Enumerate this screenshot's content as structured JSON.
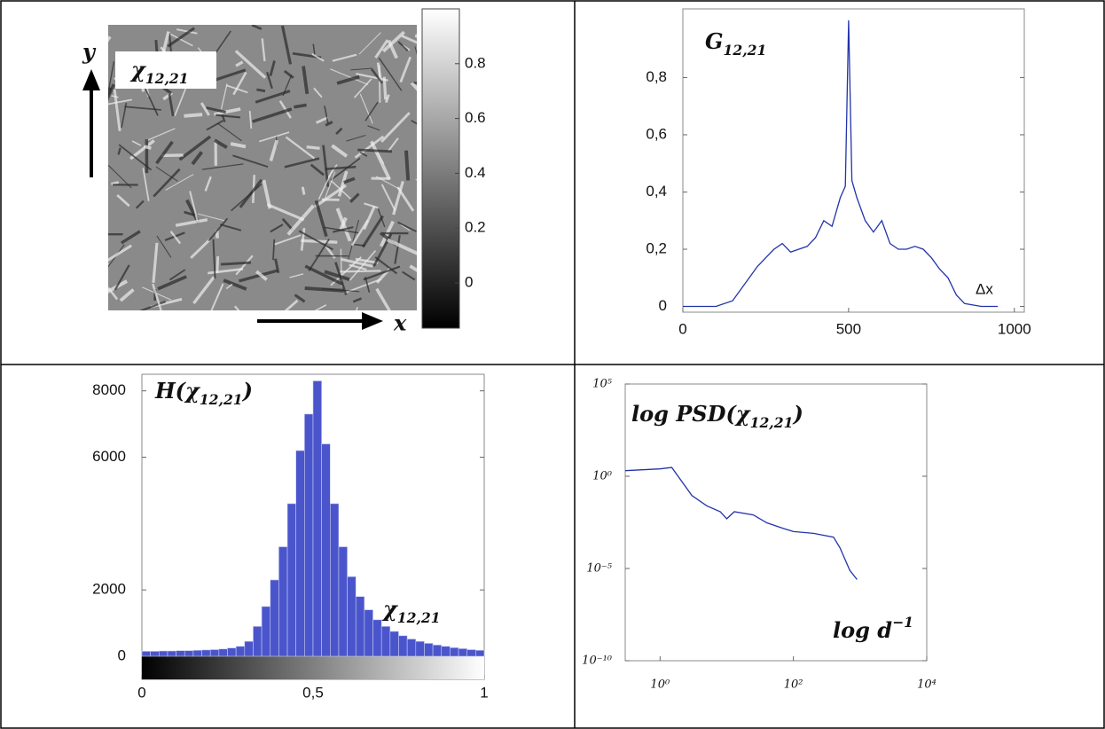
{
  "chart_data": [
    {
      "type": "image",
      "label": {
        "text": "χ",
        "subscript": "12,21"
      },
      "x_label": "x",
      "y_label": "y",
      "colorbar": {
        "clim": [
          -0.165,
          1.0
        ],
        "ticks": [
          0,
          0.2,
          0.4,
          0.6,
          0.8
        ],
        "colors": [
          "#000000",
          "#ffffff"
        ]
      }
    },
    {
      "type": "line",
      "title": {
        "text": "G",
        "subscript": "12,21"
      },
      "x_label": "Δx",
      "x": [
        0,
        50,
        100,
        150,
        200,
        225,
        250,
        275,
        300,
        325,
        350,
        375,
        400,
        425,
        450,
        475,
        490,
        500,
        510,
        525,
        550,
        575,
        600,
        625,
        650,
        675,
        700,
        725,
        750,
        775,
        800,
        825,
        850,
        900,
        950
      ],
      "series": [
        {
          "color": "#2233aa",
          "values": [
            0,
            0,
            0,
            0.02,
            0.1,
            0.14,
            0.17,
            0.2,
            0.22,
            0.19,
            0.2,
            0.21,
            0.24,
            0.3,
            0.28,
            0.38,
            0.42,
            1.0,
            0.44,
            0.38,
            0.3,
            0.26,
            0.3,
            0.22,
            0.2,
            0.2,
            0.21,
            0.2,
            0.17,
            0.13,
            0.1,
            0.04,
            0.01,
            0,
            0
          ]
        }
      ],
      "xlim": [
        0,
        1030
      ],
      "ylim": [
        -0.02,
        1.04
      ],
      "xticks": [
        0,
        500,
        1000
      ],
      "yticks": [
        0,
        {
          "value": 0.2,
          "label": "0,2"
        },
        {
          "value": 0.4,
          "label": "0,4"
        },
        {
          "value": 0.6,
          "label": "0,6"
        },
        {
          "value": 0.8,
          "label": "0,8"
        }
      ]
    },
    {
      "type": "histogram",
      "title": {
        "text": "H(χ",
        "subscript": "12,21",
        "after": ")"
      },
      "x_label": {
        "text": "χ",
        "subscript": "12,21"
      },
      "bins": [
        0,
        0.025,
        0.05,
        0.075,
        0.1,
        0.125,
        0.15,
        0.175,
        0.2,
        0.225,
        0.25,
        0.275,
        0.3,
        0.325,
        0.35,
        0.375,
        0.4,
        0.425,
        0.45,
        0.475,
        0.5,
        0.525,
        0.55,
        0.575,
        0.6,
        0.625,
        0.65,
        0.675,
        0.7,
        0.725,
        0.75,
        0.775,
        0.8,
        0.825,
        0.85,
        0.875,
        0.9,
        0.925,
        0.95,
        0.975,
        1
      ],
      "counts": [
        150,
        150,
        160,
        160,
        170,
        170,
        180,
        190,
        200,
        220,
        250,
        300,
        450,
        900,
        1500,
        2300,
        3300,
        4600,
        6200,
        7300,
        8300,
        6400,
        4600,
        3300,
        2400,
        1800,
        1400,
        1100,
        900,
        750,
        620,
        520,
        450,
        390,
        340,
        300,
        260,
        230,
        200,
        180
      ],
      "color": "#4a55cc",
      "xlim": [
        0,
        1
      ],
      "ylim": [
        0,
        8500
      ],
      "xticks": [
        0,
        {
          "value": 0.5,
          "label": "0,5"
        },
        1
      ],
      "yticks": [
        0,
        2000,
        6000,
        8000
      ]
    },
    {
      "type": "line",
      "log_x": true,
      "log_y": true,
      "title": {
        "text": "log PSD(χ",
        "subscript": "12,21",
        "after": ")"
      },
      "x_label": {
        "text": "log d",
        "superscript": "−1"
      },
      "x": [
        0.3,
        1,
        1.5,
        3,
        5,
        8,
        10,
        13,
        25,
        40,
        70,
        100,
        200,
        400,
        500,
        700,
        900
      ],
      "series": [
        {
          "color": "#2233aa",
          "values": [
            2,
            2.5,
            3,
            0.09,
            0.025,
            0.012,
            0.005,
            0.012,
            0.008,
            0.003,
            0.0015,
            0.001,
            0.0008,
            0.0005,
            0.00013,
            8e-06,
            2.5e-06
          ]
        }
      ],
      "xlim": [
        0.3,
        10000
      ],
      "ylim": [
        1e-10,
        100000
      ],
      "xticks": [
        {
          "value": 1,
          "label": "10⁰"
        },
        {
          "value": 100,
          "label": "10²"
        },
        {
          "value": 10000,
          "label": "10⁴"
        }
      ],
      "yticks": [
        {
          "value": 1e-10,
          "label": "10⁻¹⁰"
        },
        {
          "value": 1e-05,
          "label": "10⁻⁵"
        },
        {
          "value": 1,
          "label": "10⁰"
        },
        {
          "value": 100000,
          "label": "10⁵"
        }
      ]
    }
  ]
}
